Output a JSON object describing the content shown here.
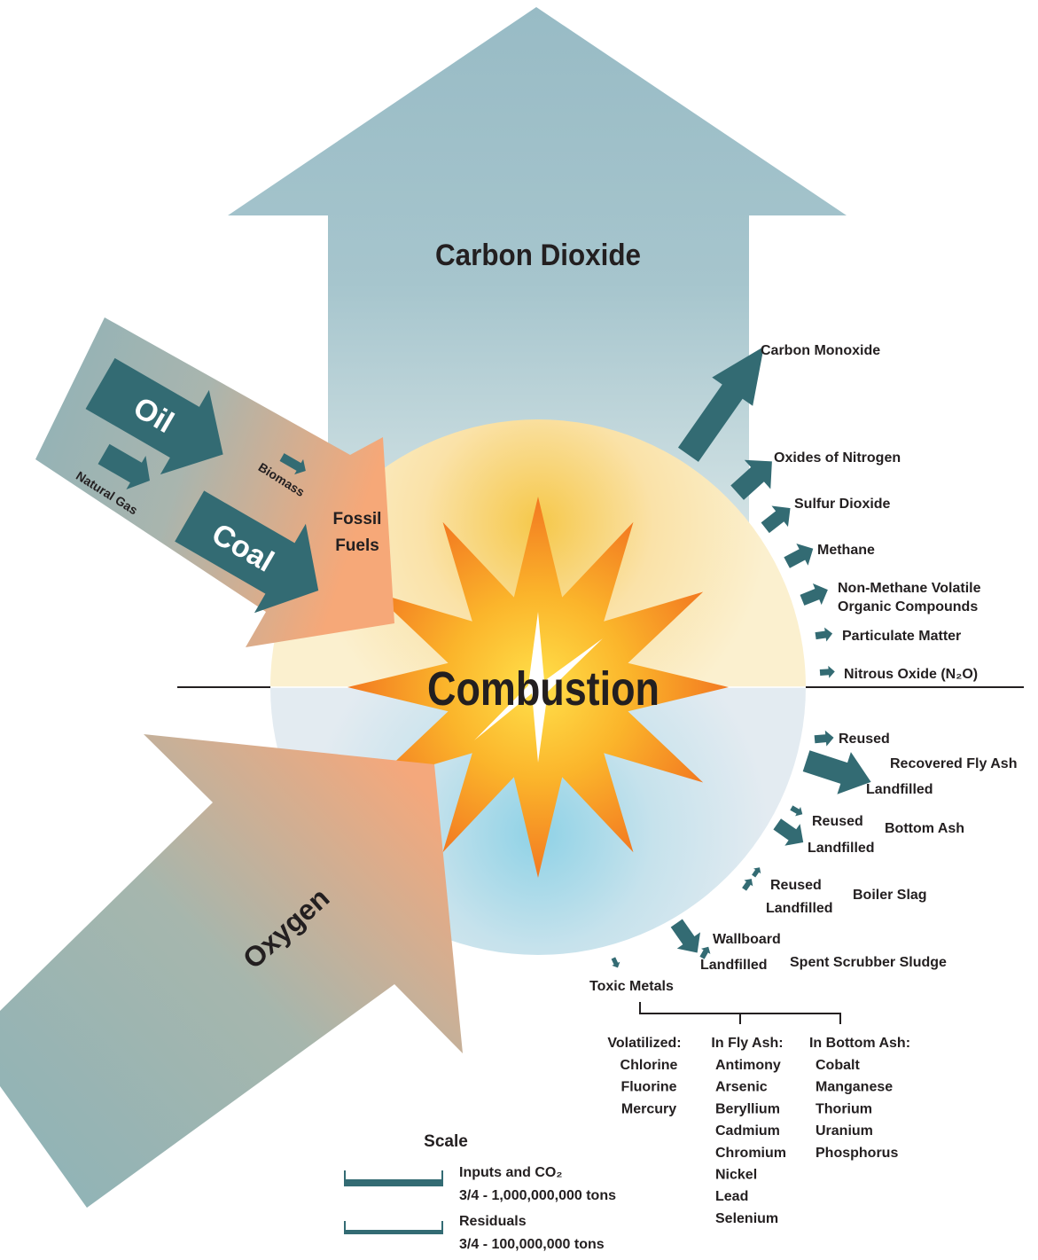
{
  "diagram": {
    "center": "Combustion",
    "output": "Carbon Dioxide",
    "inputs": {
      "oil": "Oil",
      "coal": "Coal",
      "natural_gas": "Natural Gas",
      "biomass": "Biomass",
      "fossil_fuels": [
        "Fossil",
        "Fuels"
      ],
      "oxygen": "Oxygen"
    },
    "air_emissions": [
      [
        "Carbon Monoxide"
      ],
      [
        "Oxides of Nitrogen"
      ],
      [
        "Sulfur Dioxide"
      ],
      [
        "Methane"
      ],
      [
        "Non-Methane Volatile",
        "Organic Compounds"
      ],
      [
        "Particulate Matter"
      ],
      [
        "Nitrous Oxide (N₂O)"
      ]
    ],
    "residuals": [
      {
        "name": "Recovered Fly Ash",
        "uses": [
          "Reused",
          "Landfilled"
        ]
      },
      {
        "name": "Bottom Ash",
        "uses": [
          "Reused",
          "Landfilled"
        ]
      },
      {
        "name": "Boiler Slag",
        "uses": [
          "Reused",
          "Landfilled"
        ]
      },
      {
        "name": "Spent Scrubber Sludge",
        "uses": [
          "Wallboard",
          "Landfilled"
        ]
      }
    ],
    "toxic_metals": {
      "name": "Toxic Metals",
      "groups": [
        {
          "name": "Volatilized:",
          "items": [
            "Chlorine",
            "Fluorine",
            "Mercury"
          ]
        },
        {
          "name": "In Fly Ash:",
          "items": [
            "Antimony",
            "Arsenic",
            "Beryllium",
            "Cadmium",
            "Chromium",
            "Nickel",
            "Lead",
            "Selenium"
          ]
        },
        {
          "name": "In Bottom Ash:",
          "items": [
            "Cobalt",
            "Manganese",
            "Thorium",
            "Uranium",
            "Phosphorus"
          ]
        }
      ]
    },
    "scale": {
      "title": "Scale",
      "items": [
        {
          "label": "Inputs and CO₂",
          "value": "3/4 - 1,000,000,000 tons"
        },
        {
          "label": "Residuals",
          "value": "3/4 - 100,000,000 tons"
        }
      ]
    }
  }
}
